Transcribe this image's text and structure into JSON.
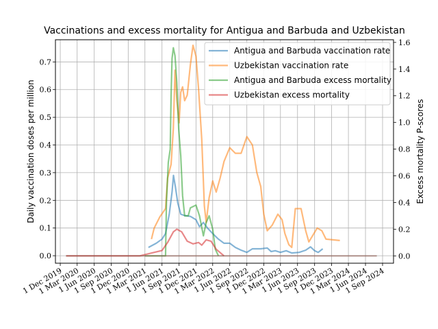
{
  "chart_data": {
    "type": "line",
    "title": "Vaccinations and excess mortality for Antigua and Barbuda and Uzbekistan",
    "ylabel": "Daily vaccination doses per million",
    "y2label": "Excess mortality P-scores",
    "ylim": [
      -0.027,
      0.78
    ],
    "y2lim": [
      -0.055,
      1.62
    ],
    "xlim": [
      "2019-11-05",
      "2024-10-30"
    ],
    "grid": true,
    "legend_position": "upper right",
    "x_ticks": [
      "2019-12-01",
      "2020-03-01",
      "2020-06-01",
      "2020-09-01",
      "2020-12-01",
      "2021-03-01",
      "2021-06-01",
      "2021-09-01",
      "2021-12-01",
      "2022-03-01",
      "2022-06-01",
      "2022-09-01",
      "2022-12-01",
      "2023-03-01",
      "2023-06-01",
      "2023-09-01",
      "2023-12-01",
      "2024-03-01",
      "2024-06-01",
      "2024-09-01"
    ],
    "x_tick_labels": [
      "1 Dec 2019",
      "1 Mar 2020",
      "1 Jun 2020",
      "1 Sep 2020",
      "1 Dec 2020",
      "1 Mar 2021",
      "1 Jun 2021",
      "1 Sep 2021",
      "1 Dec 2021",
      "1 Mar 2022",
      "1 Jun 2022",
      "1 Sep 2022",
      "1 Dec 2022",
      "1 Mar 2023",
      "1 Jun 2023",
      "1 Sep 2023",
      "1 Dec 2023",
      "1 Mar 2024",
      "1 Jun 2024",
      "1 Sep 2024"
    ],
    "y_ticks": [
      0.0,
      0.1,
      0.2,
      0.3,
      0.4,
      0.5,
      0.6,
      0.7
    ],
    "y_tick_labels": [
      "0.0",
      "0.1",
      "0.2",
      "0.3",
      "0.4",
      "0.5",
      "0.6",
      "0.7"
    ],
    "y2_ticks": [
      0.0,
      0.2,
      0.4,
      0.6,
      0.8,
      1.0,
      1.2,
      1.4,
      1.6
    ],
    "y2_tick_labels": [
      "0.0",
      "0.2",
      "0.4",
      "0.6",
      "0.8",
      "1.0",
      "1.2",
      "1.4",
      "1.6"
    ],
    "series": [
      {
        "name": "Antigua and Barbuda vaccination rate",
        "axis": "left",
        "color": "#1f77b4",
        "points": [
          [
            "2021-03-20",
            0.03
          ],
          [
            "2021-05-01",
            0.045
          ],
          [
            "2021-06-01",
            0.06
          ],
          [
            "2021-06-20",
            0.08
          ],
          [
            "2021-07-10",
            0.15
          ],
          [
            "2021-07-25",
            0.23
          ],
          [
            "2021-08-02",
            0.29
          ],
          [
            "2021-08-12",
            0.25
          ],
          [
            "2021-08-25",
            0.19
          ],
          [
            "2021-09-10",
            0.15
          ],
          [
            "2021-10-01",
            0.145
          ],
          [
            "2021-11-01",
            0.142
          ],
          [
            "2021-12-01",
            0.13
          ],
          [
            "2021-12-20",
            0.105
          ],
          [
            "2022-01-10",
            0.12
          ],
          [
            "2022-02-01",
            0.1
          ],
          [
            "2022-03-01",
            0.08
          ],
          [
            "2022-04-01",
            0.06
          ],
          [
            "2022-05-01",
            0.045
          ],
          [
            "2022-06-01",
            0.045
          ],
          [
            "2022-07-01",
            0.03
          ],
          [
            "2022-08-01",
            0.02
          ],
          [
            "2022-09-01",
            0.012
          ],
          [
            "2022-10-01",
            0.025
          ],
          [
            "2022-11-15",
            0.025
          ],
          [
            "2022-12-20",
            0.028
          ],
          [
            "2023-01-10",
            0.015
          ],
          [
            "2023-02-01",
            0.018
          ],
          [
            "2023-03-01",
            0.012
          ],
          [
            "2023-04-01",
            0.018
          ],
          [
            "2023-05-01",
            0.01
          ],
          [
            "2023-06-10",
            0.012
          ],
          [
            "2023-07-15",
            0.02
          ],
          [
            "2023-08-10",
            0.032
          ],
          [
            "2023-09-01",
            0.018
          ],
          [
            "2023-09-20",
            0.012
          ],
          [
            "2023-10-15",
            0.025
          ]
        ]
      },
      {
        "name": "Uzbekistan vaccination rate",
        "axis": "left",
        "color": "#ff7f0e",
        "points": [
          [
            "2021-04-05",
            0.06
          ],
          [
            "2021-04-20",
            0.1
          ],
          [
            "2021-05-20",
            0.14
          ],
          [
            "2021-06-20",
            0.17
          ],
          [
            "2021-07-01",
            0.28
          ],
          [
            "2021-07-20",
            0.33
          ],
          [
            "2021-08-01",
            0.46
          ],
          [
            "2021-08-10",
            0.67
          ],
          [
            "2021-08-20",
            0.56
          ],
          [
            "2021-09-01",
            0.48
          ],
          [
            "2021-09-10",
            0.59
          ],
          [
            "2021-09-20",
            0.61
          ],
          [
            "2021-10-01",
            0.56
          ],
          [
            "2021-10-15",
            0.58
          ],
          [
            "2021-11-01",
            0.69
          ],
          [
            "2021-11-15",
            0.76
          ],
          [
            "2021-12-01",
            0.72
          ],
          [
            "2021-12-15",
            0.6
          ],
          [
            "2022-01-01",
            0.42
          ],
          [
            "2022-01-15",
            0.18
          ],
          [
            "2022-01-25",
            0.12
          ],
          [
            "2022-02-10",
            0.21
          ],
          [
            "2022-03-01",
            0.27
          ],
          [
            "2022-03-20",
            0.23
          ],
          [
            "2022-04-10",
            0.28
          ],
          [
            "2022-05-01",
            0.34
          ],
          [
            "2022-06-01",
            0.39
          ],
          [
            "2022-07-01",
            0.37
          ],
          [
            "2022-08-01",
            0.37
          ],
          [
            "2022-09-01",
            0.43
          ],
          [
            "2022-10-01",
            0.4
          ],
          [
            "2022-10-25",
            0.3
          ],
          [
            "2022-11-15",
            0.25
          ],
          [
            "2022-12-01",
            0.15
          ],
          [
            "2022-12-20",
            0.09
          ],
          [
            "2023-01-15",
            0.11
          ],
          [
            "2023-02-15",
            0.15
          ],
          [
            "2023-03-10",
            0.13
          ],
          [
            "2023-03-25",
            0.08
          ],
          [
            "2023-04-15",
            0.04
          ],
          [
            "2023-05-01",
            0.03
          ],
          [
            "2023-05-20",
            0.17
          ],
          [
            "2023-06-20",
            0.17
          ],
          [
            "2023-07-15",
            0.09
          ],
          [
            "2023-08-01",
            0.05
          ],
          [
            "2023-09-15",
            0.1
          ],
          [
            "2023-10-10",
            0.09
          ],
          [
            "2023-11-01",
            0.06
          ],
          [
            "2024-01-15",
            0.055
          ]
        ]
      },
      {
        "name": "Antigua and Barbuda excess mortality",
        "axis": "right",
        "color": "#2ca02c",
        "points": [
          [
            "2021-03-01",
            0.0
          ],
          [
            "2021-06-20",
            0.0
          ],
          [
            "2021-06-25",
            0.4
          ],
          [
            "2021-07-05",
            0.7
          ],
          [
            "2021-07-15",
            0.8
          ],
          [
            "2021-07-20",
            1.2
          ],
          [
            "2021-07-25",
            1.48
          ],
          [
            "2021-08-01",
            1.56
          ],
          [
            "2021-08-10",
            1.5
          ],
          [
            "2021-08-20",
            1.3
          ],
          [
            "2021-08-30",
            0.95
          ],
          [
            "2021-09-10",
            0.75
          ],
          [
            "2021-09-20",
            0.45
          ],
          [
            "2021-10-01",
            0.3
          ],
          [
            "2021-10-20",
            0.3
          ],
          [
            "2021-11-01",
            0.36
          ],
          [
            "2021-12-01",
            0.38
          ],
          [
            "2021-12-20",
            0.3
          ],
          [
            "2022-01-10",
            0.15
          ],
          [
            "2022-01-25",
            0.25
          ],
          [
            "2022-02-10",
            0.3
          ],
          [
            "2022-03-01",
            0.2
          ],
          [
            "2022-03-15",
            0.05
          ],
          [
            "2022-04-01",
            0.0
          ]
        ]
      },
      {
        "name": "Uzbekistan excess mortality",
        "axis": "right",
        "color": "#d62728",
        "points": [
          [
            "2020-01-01",
            0.0
          ],
          [
            "2021-02-01",
            0.0
          ],
          [
            "2021-04-01",
            0.02
          ],
          [
            "2021-06-01",
            0.04
          ],
          [
            "2021-07-01",
            0.1
          ],
          [
            "2021-08-01",
            0.18
          ],
          [
            "2021-08-20",
            0.2
          ],
          [
            "2021-09-15",
            0.18
          ],
          [
            "2021-10-15",
            0.11
          ],
          [
            "2021-11-15",
            0.09
          ],
          [
            "2021-12-15",
            0.1
          ],
          [
            "2022-01-01",
            0.08
          ],
          [
            "2022-01-25",
            0.12
          ],
          [
            "2022-02-20",
            0.11
          ],
          [
            "2022-03-20",
            0.05
          ],
          [
            "2022-05-01",
            0.0
          ]
        ]
      },
      {
        "name": "",
        "axis": "right",
        "color": "#8c564b",
        "points": [
          [
            "2020-01-01",
            0.0
          ],
          [
            "2024-08-01",
            0.0
          ]
        ]
      }
    ]
  }
}
